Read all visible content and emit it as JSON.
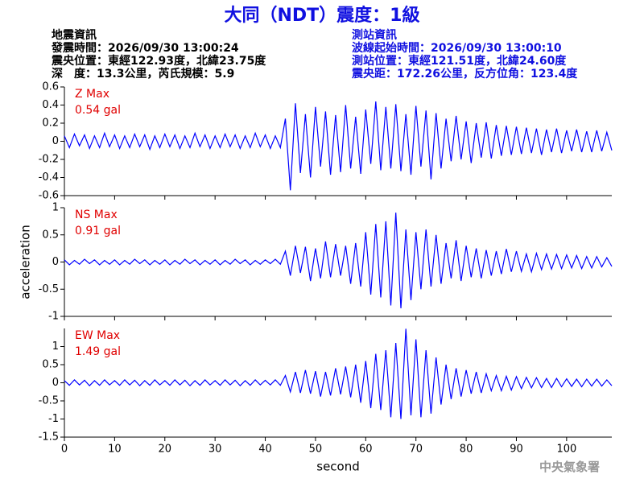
{
  "header": {
    "title": "大同（NDT）震度：1級",
    "left": [
      "地震資訊",
      "發震時間：2026/09/30 13:00:24",
      "震央位置：東經122.93度，北緯23.75度",
      "深　度：13.3公里，芮氏規模：5.9"
    ],
    "right": [
      "測站資訊",
      "波線起始時間：2026/09/30 13:00:10",
      "測站位置：東經121.51度，北緯24.60度",
      "震央距：172.26公里，反方位角：123.4度"
    ],
    "footer": "中央氣象署"
  },
  "chart_data": [
    {
      "type": "line",
      "annotation": [
        "Z Max",
        "0.54 gal"
      ],
      "color": "#0000ff",
      "xlim": [
        0,
        109
      ],
      "ylim": [
        -0.6,
        0.6
      ],
      "yticks": [
        -0.6,
        -0.4,
        -0.2,
        0,
        0.2,
        0.4,
        0.6
      ],
      "x": [
        0,
        1,
        2,
        3,
        4,
        5,
        6,
        7,
        8,
        9,
        10,
        11,
        12,
        13,
        14,
        15,
        16,
        17,
        18,
        19,
        20,
        21,
        22,
        23,
        24,
        25,
        26,
        27,
        28,
        29,
        30,
        31,
        32,
        33,
        34,
        35,
        36,
        37,
        38,
        39,
        40,
        41,
        42,
        43,
        44,
        45,
        46,
        47,
        48,
        49,
        50,
        51,
        52,
        53,
        54,
        55,
        56,
        57,
        58,
        59,
        60,
        61,
        62,
        63,
        64,
        65,
        66,
        67,
        68,
        69,
        70,
        71,
        72,
        73,
        74,
        75,
        76,
        77,
        78,
        79,
        80,
        81,
        82,
        83,
        84,
        85,
        86,
        87,
        88,
        89,
        90,
        91,
        92,
        93,
        94,
        95,
        96,
        97,
        98,
        99,
        100,
        101,
        102,
        103,
        104,
        105,
        106,
        107,
        108,
        109
      ],
      "values": [
        0.06,
        -0.07,
        0.08,
        -0.05,
        0.07,
        -0.08,
        0.06,
        -0.07,
        0.09,
        -0.06,
        0.07,
        -0.08,
        0.06,
        -0.07,
        0.08,
        -0.06,
        0.07,
        -0.09,
        0.06,
        -0.07,
        0.08,
        -0.06,
        0.07,
        -0.08,
        0.06,
        -0.07,
        0.09,
        -0.06,
        0.07,
        -0.08,
        0.06,
        -0.07,
        0.08,
        -0.06,
        0.07,
        -0.08,
        0.06,
        -0.07,
        0.09,
        -0.06,
        0.07,
        -0.08,
        0.06,
        -0.07,
        0.25,
        -0.54,
        0.42,
        -0.35,
        0.3,
        -0.4,
        0.38,
        -0.28,
        0.33,
        -0.37,
        0.29,
        -0.34,
        0.4,
        -0.3,
        0.27,
        -0.36,
        0.35,
        -0.25,
        0.44,
        -0.32,
        0.38,
        -0.3,
        0.41,
        -0.33,
        0.3,
        -0.37,
        0.39,
        -0.28,
        0.34,
        -0.42,
        0.31,
        -0.3,
        0.25,
        -0.22,
        0.28,
        -0.2,
        0.22,
        -0.24,
        0.2,
        -0.18,
        0.21,
        -0.19,
        0.18,
        -0.16,
        0.17,
        -0.15,
        0.16,
        -0.14,
        0.15,
        -0.13,
        0.14,
        -0.15,
        0.13,
        -0.12,
        0.14,
        -0.13,
        0.12,
        -0.11,
        0.13,
        -0.12,
        0.11,
        -0.12,
        0.12,
        -0.11,
        0.1,
        -0.1
      ]
    },
    {
      "type": "line",
      "annotation": [
        "NS Max",
        "0.91 gal"
      ],
      "color": "#0000ff",
      "ylabel": "acceleration",
      "xlim": [
        0,
        109
      ],
      "ylim": [
        -1,
        1
      ],
      "yticks": [
        -1,
        -0.5,
        0,
        0.5,
        1
      ],
      "x": [
        0,
        1,
        2,
        3,
        4,
        5,
        6,
        7,
        8,
        9,
        10,
        11,
        12,
        13,
        14,
        15,
        16,
        17,
        18,
        19,
        20,
        21,
        22,
        23,
        24,
        25,
        26,
        27,
        28,
        29,
        30,
        31,
        32,
        33,
        34,
        35,
        36,
        37,
        38,
        39,
        40,
        41,
        42,
        43,
        44,
        45,
        46,
        47,
        48,
        49,
        50,
        51,
        52,
        53,
        54,
        55,
        56,
        57,
        58,
        59,
        60,
        61,
        62,
        63,
        64,
        65,
        66,
        67,
        68,
        69,
        70,
        71,
        72,
        73,
        74,
        75,
        76,
        77,
        78,
        79,
        80,
        81,
        82,
        83,
        84,
        85,
        86,
        87,
        88,
        89,
        90,
        91,
        92,
        93,
        94,
        95,
        96,
        97,
        98,
        99,
        100,
        101,
        102,
        103,
        104,
        105,
        106,
        107,
        108,
        109
      ],
      "values": [
        0.04,
        -0.05,
        0.03,
        -0.04,
        0.05,
        -0.03,
        0.04,
        -0.05,
        0.03,
        -0.04,
        0.04,
        -0.05,
        0.03,
        -0.04,
        0.05,
        -0.03,
        0.04,
        -0.05,
        0.03,
        -0.04,
        0.04,
        -0.05,
        0.03,
        -0.04,
        0.05,
        -0.03,
        0.04,
        -0.05,
        0.03,
        -0.04,
        0.04,
        -0.05,
        0.03,
        -0.04,
        0.05,
        -0.03,
        0.04,
        -0.05,
        0.03,
        -0.04,
        0.04,
        -0.03,
        0.05,
        -0.04,
        0.2,
        -0.25,
        0.3,
        -0.2,
        0.28,
        -0.35,
        0.25,
        -0.3,
        0.38,
        -0.28,
        0.33,
        -0.25,
        0.3,
        -0.4,
        0.35,
        -0.45,
        0.55,
        -0.6,
        0.7,
        -0.65,
        0.75,
        -0.8,
        0.91,
        -0.85,
        0.6,
        -0.7,
        0.55,
        -0.5,
        0.6,
        -0.45,
        0.5,
        -0.4,
        0.35,
        -0.3,
        0.4,
        -0.35,
        0.3,
        -0.28,
        0.25,
        -0.3,
        0.22,
        -0.25,
        0.2,
        -0.22,
        0.24,
        -0.18,
        0.2,
        -0.17,
        0.15,
        -0.18,
        0.16,
        -0.14,
        0.15,
        -0.13,
        0.14,
        -0.12,
        0.13,
        -0.11,
        0.12,
        -0.12,
        0.1,
        -0.11,
        0.1,
        -0.09,
        0.08,
        -0.08
      ]
    },
    {
      "type": "line",
      "annotation": [
        "EW Max",
        "1.49 gal"
      ],
      "color": "#0000ff",
      "xlabel": "second",
      "xlim": [
        0,
        109
      ],
      "xticks": [
        0,
        10,
        20,
        30,
        40,
        50,
        60,
        70,
        80,
        90,
        100
      ],
      "ylim": [
        -1.5,
        1.5
      ],
      "yticks": [
        -1.5,
        -1,
        -0.5,
        0,
        0.5,
        1
      ],
      "x": [
        0,
        1,
        2,
        3,
        4,
        5,
        6,
        7,
        8,
        9,
        10,
        11,
        12,
        13,
        14,
        15,
        16,
        17,
        18,
        19,
        20,
        21,
        22,
        23,
        24,
        25,
        26,
        27,
        28,
        29,
        30,
        31,
        32,
        33,
        34,
        35,
        36,
        37,
        38,
        39,
        40,
        41,
        42,
        43,
        44,
        45,
        46,
        47,
        48,
        49,
        50,
        51,
        52,
        53,
        54,
        55,
        56,
        57,
        58,
        59,
        60,
        61,
        62,
        63,
        64,
        65,
        66,
        67,
        68,
        69,
        70,
        71,
        72,
        73,
        74,
        75,
        76,
        77,
        78,
        79,
        80,
        81,
        82,
        83,
        84,
        85,
        86,
        87,
        88,
        89,
        90,
        91,
        92,
        93,
        94,
        95,
        96,
        97,
        98,
        99,
        100,
        101,
        102,
        103,
        104,
        105,
        106,
        107,
        108,
        109
      ],
      "values": [
        0.06,
        -0.07,
        0.08,
        -0.06,
        0.07,
        -0.08,
        0.06,
        -0.07,
        0.08,
        -0.06,
        0.06,
        -0.07,
        0.08,
        -0.06,
        0.07,
        -0.08,
        0.06,
        -0.07,
        0.08,
        -0.06,
        0.06,
        -0.07,
        0.08,
        -0.06,
        0.07,
        -0.08,
        0.06,
        -0.07,
        0.08,
        -0.06,
        0.06,
        -0.07,
        0.08,
        -0.06,
        0.07,
        -0.08,
        0.06,
        -0.07,
        0.08,
        -0.06,
        0.07,
        -0.06,
        0.08,
        -0.07,
        0.2,
        -0.25,
        0.3,
        -0.28,
        0.35,
        -0.3,
        0.32,
        -0.38,
        0.3,
        -0.35,
        0.4,
        -0.32,
        0.45,
        -0.4,
        0.5,
        -0.55,
        0.6,
        -0.7,
        0.8,
        -0.75,
        0.9,
        -0.95,
        1.1,
        -1.0,
        1.49,
        -0.9,
        1.2,
        -0.95,
        0.9,
        -0.85,
        0.7,
        -0.6,
        0.5,
        -0.45,
        0.4,
        -0.38,
        0.35,
        -0.3,
        0.3,
        -0.28,
        0.25,
        -0.22,
        0.2,
        -0.22,
        0.18,
        -0.2,
        0.17,
        -0.16,
        0.15,
        -0.14,
        0.14,
        -0.13,
        0.12,
        -0.13,
        0.12,
        -0.11,
        0.11,
        -0.1,
        0.1,
        -0.11,
        0.1,
        -0.09,
        0.1,
        -0.09,
        0.08,
        -0.08
      ]
    }
  ]
}
